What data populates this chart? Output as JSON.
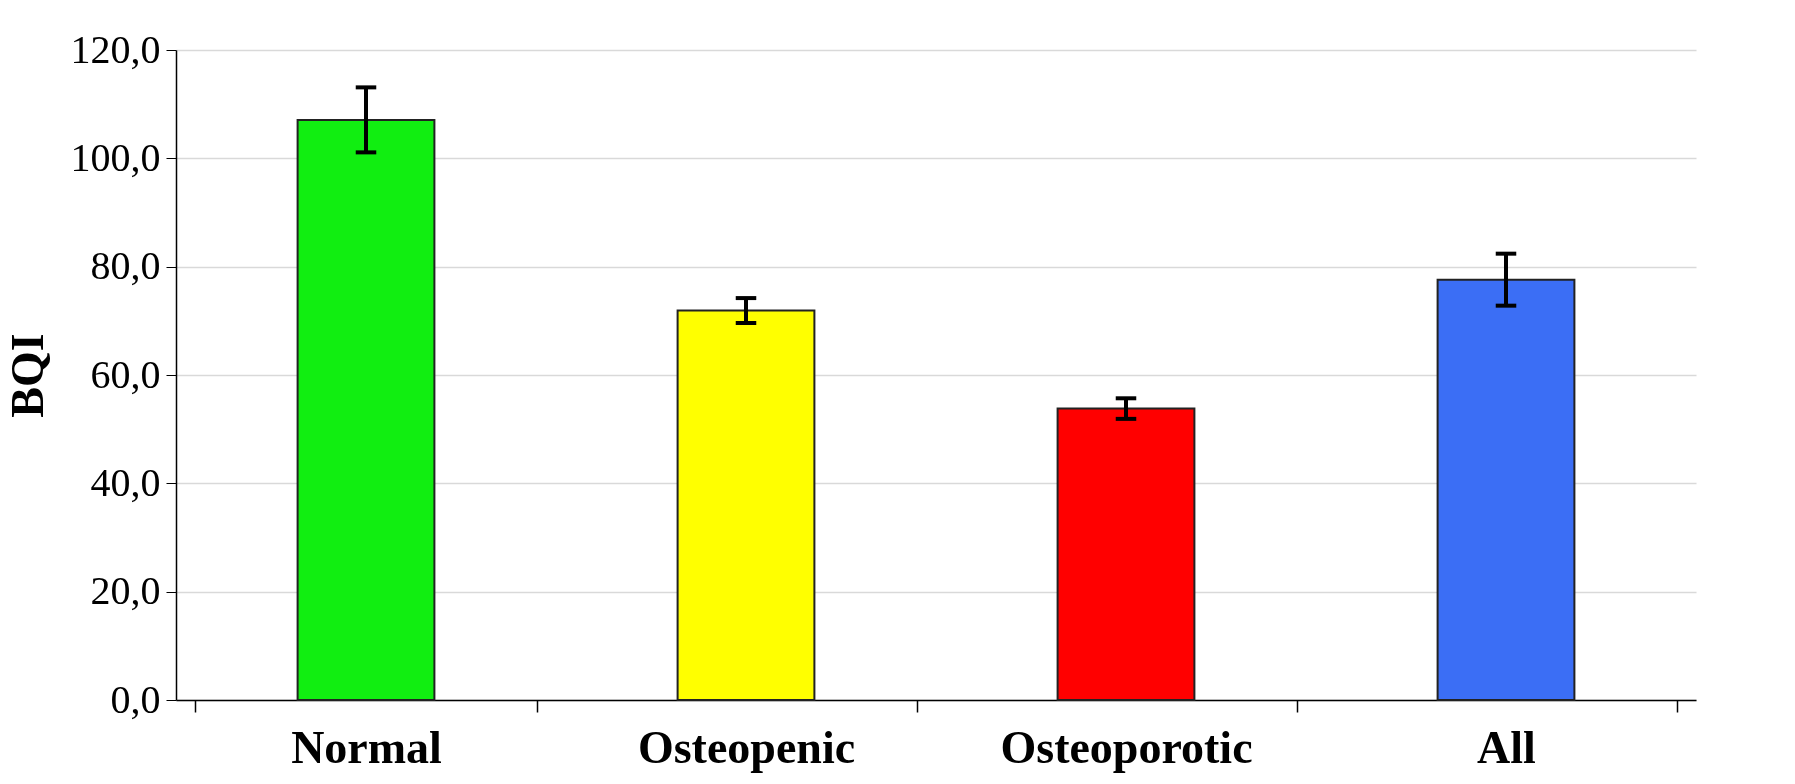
{
  "chart_data": {
    "type": "bar",
    "ylabel": "BQI",
    "categories": [
      "Normal",
      "Osteopenic",
      "Osteoporotic",
      "All"
    ],
    "values": [
      107.1,
      71.9,
      53.8,
      77.6
    ],
    "errors": [
      6.0,
      2.3,
      1.9,
      4.8
    ],
    "colors": [
      "#11ee11",
      "#ffff00",
      "#ff0000",
      "#3b6ef5"
    ],
    "ylim": [
      0,
      120
    ],
    "yticks": [
      {
        "value": 0,
        "label": "0,0"
      },
      {
        "value": 20,
        "label": "20,0"
      },
      {
        "value": 40,
        "label": "40,0"
      },
      {
        "value": 60,
        "label": "60,0"
      },
      {
        "value": 80,
        "label": "80,0"
      },
      {
        "value": 100,
        "label": "100,0"
      },
      {
        "value": 120,
        "label": "120,0"
      }
    ],
    "grid": "y"
  }
}
